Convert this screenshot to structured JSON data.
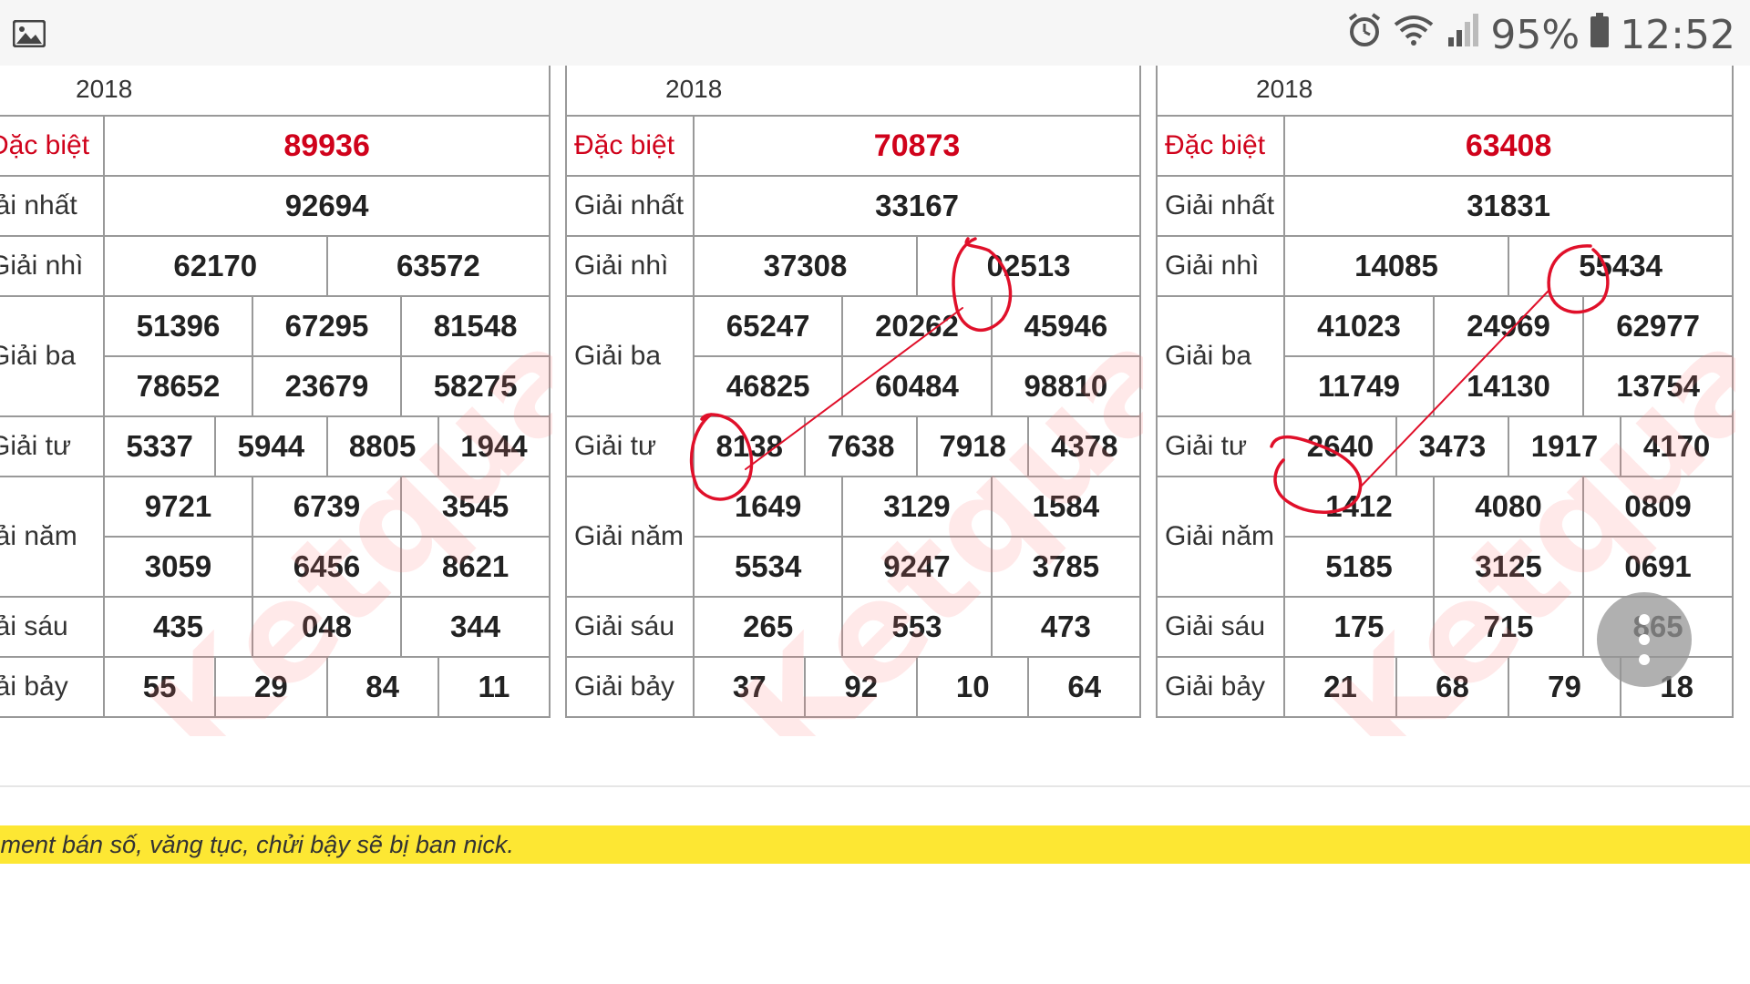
{
  "status_bar": {
    "battery": "95%",
    "time": "12:52",
    "icons": [
      "image-icon",
      "alarm-icon",
      "wifi-icon",
      "signal-icon",
      "battery-icon"
    ]
  },
  "labels": [
    "Đặc biệt",
    "Giải nhất",
    "Giải nhì",
    "Giải ba",
    "Giải tư",
    "Giải năm",
    "Giải sáu",
    "Giải bảy"
  ],
  "panels": [
    {
      "year": "2018",
      "labels": [
        "Đặc biệt",
        "iải nhất",
        "Giải nhì",
        "Giải ba",
        "Giải tư",
        "iải năm",
        "iải sáu",
        "iải bảy"
      ],
      "db": "89936",
      "g1": "92694",
      "g2": [
        "62170",
        "63572"
      ],
      "g3": [
        "51396",
        "67295",
        "81548",
        "78652",
        "23679",
        "58275"
      ],
      "g4": [
        "5337",
        "5944",
        "8805",
        "1944"
      ],
      "g5": [
        "9721",
        "6739",
        "3545",
        "3059",
        "6456",
        "8621"
      ],
      "g6": [
        "435",
        "048",
        "344"
      ],
      "g7": [
        "55",
        "29",
        "84",
        "11"
      ]
    },
    {
      "year": "2018",
      "labels": [
        "Đặc biệt",
        "Giải nhất",
        "Giải nhì",
        "Giải ba",
        "Giải tư",
        "Giải năm",
        "Giải sáu",
        "Giải bảy"
      ],
      "db": "70873",
      "g1": "33167",
      "g2": [
        "37308",
        "02513"
      ],
      "g3": [
        "65247",
        "20262",
        "45946",
        "46825",
        "60484",
        "98810"
      ],
      "g4": [
        "8138",
        "7638",
        "7918",
        "4378"
      ],
      "g5": [
        "1649",
        "3129",
        "1584",
        "5534",
        "9247",
        "3785"
      ],
      "g6": [
        "265",
        "553",
        "473"
      ],
      "g7": [
        "37",
        "92",
        "10",
        "64"
      ]
    },
    {
      "year": "2018",
      "labels": [
        "Đặc biệt",
        "Giải nhất",
        "Giải nhì",
        "Giải ba",
        "Giải tư",
        "Giải năm",
        "Giải sáu",
        "Giải bảy"
      ],
      "db": "63408",
      "g1": "31831",
      "g2": [
        "14085",
        "55434"
      ],
      "g3": [
        "41023",
        "24969",
        "62977",
        "11749",
        "14130",
        "13754"
      ],
      "g4": [
        "2640",
        "3473",
        "1917",
        "4170"
      ],
      "g5": [
        "1412",
        "4080",
        "0809",
        "5185",
        "3125",
        "0691"
      ],
      "g6": [
        "175",
        "715",
        "865"
      ],
      "g7": [
        "21",
        "68",
        "79",
        "18"
      ]
    }
  ],
  "notice": "mment bán số, văng tục, chửi bậy sẽ bị ban nick.",
  "colors": {
    "red": "#d0021b",
    "notice_bg": "#fde733",
    "border": "#999999"
  }
}
